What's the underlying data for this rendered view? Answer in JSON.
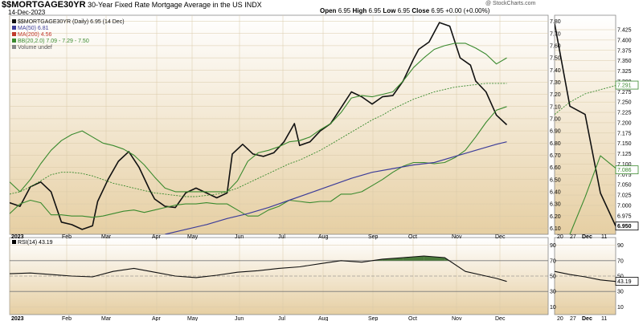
{
  "header": {
    "symbol": "$$MORTGAGE30YR",
    "description": "30-Year Fixed Rate Mortgage Average in the US",
    "exchange": "INDX",
    "date": "14-Dec-2023",
    "watermark": "@ StockCharts.com",
    "ohlc": {
      "open_label": "Open",
      "open": "6.95",
      "high_label": "High",
      "high": "6.95",
      "low_label": "Low",
      "low": "6.95",
      "close_label": "Close",
      "close": "6.95",
      "change": "+0.00 (+0.00%)"
    }
  },
  "legend": {
    "price": "$$MORTGAGE30YR (Daily) 6.95 (14 Dec)",
    "ma50": "MA(50) 6.81",
    "ma200": "MA(200) 4.56",
    "bb": "BB(20,2.0) 7.09 - 7.29 - 7.50",
    "volume": "Volume undef"
  },
  "colors": {
    "price": "#111111",
    "ma50": "#3d3d99",
    "ma200": "#c0392b",
    "bb": "#3a8a2e",
    "bg_top": "#ffffff",
    "bg_bottom": "#e6cfa3",
    "rsi_fill": "#4a7a3a"
  },
  "chart_data": [
    {
      "type": "line",
      "id": "main",
      "x_labels": [
        "2023",
        "Feb",
        "Mar",
        "Apr",
        "May",
        "Jun",
        "Jul",
        "Aug",
        "Sep",
        "Oct",
        "Nov",
        "Dec"
      ],
      "ylim": [
        6.05,
        7.85
      ],
      "y_ticks": [
        "6.10",
        "6.20",
        "6.30",
        "6.40",
        "6.50",
        "6.60",
        "6.70",
        "6.80",
        "6.90",
        "7.00",
        "7.10",
        "7.20",
        "7.30",
        "7.40",
        "7.50",
        "7.60",
        "7.70",
        "7.80"
      ],
      "series": [
        {
          "key": "price",
          "x": [
            0,
            2,
            4,
            6,
            8,
            10,
            12,
            14,
            16,
            17,
            19,
            21,
            23,
            25,
            27,
            28,
            30,
            32,
            34,
            36,
            38,
            40,
            42,
            43,
            45,
            47,
            49,
            51,
            53,
            55,
            56,
            58,
            60,
            62,
            64,
            66,
            68,
            70,
            72,
            74,
            76,
            78,
            79,
            81,
            83,
            85,
            87,
            89,
            90,
            92,
            94,
            96,
            98,
            100,
            102,
            104
          ],
          "y": [
            6.31,
            6.28,
            6.44,
            6.48,
            6.4,
            6.15,
            6.13,
            6.09,
            6.12,
            6.32,
            6.5,
            6.65,
            6.73,
            6.6,
            6.42,
            6.34,
            6.28,
            6.27,
            6.39,
            6.43,
            6.39,
            6.35,
            6.39,
            6.71,
            6.79,
            6.71,
            6.69,
            6.72,
            6.81,
            6.96,
            6.78,
            6.81,
            6.9,
            6.96,
            7.09,
            7.22,
            7.18,
            7.12,
            7.18,
            7.19,
            7.31,
            7.49,
            7.57,
            7.63,
            7.79,
            7.76,
            7.5,
            7.44,
            7.31,
            7.22,
            7.03,
            6.95,
            null,
            null,
            null,
            null
          ]
        },
        {
          "key": "bb_upper",
          "x": [
            0,
            2,
            4,
            6,
            8,
            10,
            12,
            14,
            16,
            18,
            20,
            22,
            24,
            26,
            28,
            30,
            32,
            34,
            36,
            38,
            40,
            42,
            44,
            46,
            48,
            50,
            52,
            54,
            56,
            58,
            60,
            62,
            64,
            66,
            68,
            70,
            72,
            74,
            76,
            78,
            80,
            82,
            84,
            86,
            88,
            90,
            92,
            94,
            96
          ],
          "y": [
            6.48,
            6.4,
            6.5,
            6.63,
            6.74,
            6.82,
            6.87,
            6.9,
            6.85,
            6.8,
            6.78,
            6.75,
            6.7,
            6.62,
            6.52,
            6.43,
            6.4,
            6.4,
            6.4,
            6.4,
            6.4,
            6.4,
            6.49,
            6.65,
            6.72,
            6.74,
            6.77,
            6.81,
            6.82,
            6.85,
            6.91,
            6.96,
            7.05,
            7.17,
            7.19,
            7.18,
            7.2,
            7.22,
            7.31,
            7.42,
            7.5,
            7.57,
            7.6,
            7.62,
            7.62,
            7.58,
            7.53,
            7.45,
            7.5
          ]
        },
        {
          "key": "bb_middle",
          "x": [
            0,
            2,
            4,
            6,
            8,
            10,
            12,
            14,
            16,
            18,
            20,
            22,
            24,
            26,
            28,
            30,
            32,
            34,
            36,
            38,
            40,
            42,
            44,
            46,
            48,
            50,
            52,
            54,
            56,
            58,
            60,
            62,
            64,
            66,
            68,
            70,
            72,
            74,
            76,
            78,
            80,
            82,
            84,
            86,
            88,
            90,
            92,
            94,
            96
          ],
          "y": [
            6.38,
            6.4,
            6.44,
            6.49,
            6.54,
            6.56,
            6.56,
            6.55,
            6.53,
            6.5,
            6.47,
            6.45,
            6.43,
            6.41,
            6.39,
            6.38,
            6.37,
            6.36,
            6.36,
            6.37,
            6.38,
            6.4,
            6.43,
            6.47,
            6.51,
            6.55,
            6.59,
            6.63,
            6.66,
            6.7,
            6.74,
            6.79,
            6.84,
            6.89,
            6.94,
            6.99,
            7.03,
            7.08,
            7.12,
            7.16,
            7.19,
            7.22,
            7.24,
            7.26,
            7.27,
            7.28,
            7.29,
            7.29,
            7.29
          ]
        },
        {
          "key": "bb_lower",
          "x": [
            0,
            2,
            4,
            6,
            8,
            10,
            12,
            14,
            16,
            18,
            20,
            22,
            24,
            26,
            28,
            30,
            32,
            34,
            36,
            38,
            40,
            42,
            44,
            46,
            48,
            50,
            52,
            54,
            56,
            58,
            60,
            62,
            64,
            66,
            68,
            70,
            72,
            74,
            76,
            78,
            80,
            82,
            84,
            86,
            88,
            90,
            92,
            94,
            96
          ],
          "y": [
            6.22,
            6.3,
            6.33,
            6.31,
            6.21,
            6.21,
            6.2,
            6.2,
            6.19,
            6.2,
            6.22,
            6.24,
            6.25,
            6.23,
            6.25,
            6.27,
            6.29,
            6.3,
            6.3,
            6.31,
            6.3,
            6.3,
            6.25,
            6.2,
            6.2,
            6.25,
            6.28,
            6.33,
            6.32,
            6.31,
            6.32,
            6.32,
            6.38,
            6.38,
            6.4,
            6.45,
            6.5,
            6.56,
            6.61,
            6.64,
            6.64,
            6.63,
            6.64,
            6.68,
            6.74,
            6.85,
            6.97,
            7.07,
            7.1
          ]
        },
        {
          "key": "ma50",
          "x": [
            30,
            34,
            38,
            42,
            46,
            50,
            54,
            58,
            62,
            66,
            70,
            74,
            78,
            82,
            86,
            90,
            94,
            96
          ],
          "y": [
            6.05,
            6.09,
            6.13,
            6.18,
            6.22,
            6.27,
            6.33,
            6.39,
            6.45,
            6.51,
            6.56,
            6.59,
            6.62,
            6.64,
            6.69,
            6.74,
            6.79,
            6.81
          ]
        }
      ]
    },
    {
      "type": "line",
      "id": "zoom",
      "x_labels": [
        "20",
        "27",
        "Dec",
        "11"
      ],
      "ylim": [
        6.93,
        7.46
      ],
      "y_ticks": [
        "6.975",
        "7.000",
        "7.025",
        "7.050",
        "7.075",
        "7.100",
        "7.125",
        "7.150",
        "7.175",
        "7.200",
        "7.225",
        "7.250",
        "7.275",
        "7.300",
        "7.325",
        "7.350",
        "7.375",
        "7.400",
        "7.425"
      ],
      "price_label": "6.950",
      "bb_upper_label": "7.291",
      "bb_lower_label": "7.086",
      "series": [
        {
          "key": "price",
          "x": [
            0,
            1,
            2,
            3,
            4
          ],
          "y": [
            7.44,
            7.24,
            7.22,
            7.03,
            6.95
          ]
        },
        {
          "key": "bb_middle",
          "x": [
            0,
            1,
            2,
            3,
            4
          ],
          "y": [
            7.22,
            7.25,
            7.27,
            7.28,
            7.29
          ]
        },
        {
          "key": "bb_lower",
          "x": [
            1,
            2,
            3,
            4
          ],
          "y": [
            6.93,
            7.02,
            7.12,
            7.09
          ]
        }
      ]
    },
    {
      "type": "line",
      "id": "rsi",
      "legend": "RSI(14) 43.19",
      "ylim": [
        0,
        100
      ],
      "y_ticks": [
        "10",
        "30",
        "50",
        "70",
        "90"
      ],
      "rsi_label": "43.19",
      "x": [
        0,
        4,
        8,
        12,
        16,
        20,
        24,
        28,
        32,
        36,
        40,
        44,
        48,
        52,
        56,
        60,
        64,
        68,
        72,
        76,
        80,
        84,
        88,
        92,
        94,
        96
      ],
      "values": [
        53,
        54,
        52,
        50,
        49,
        56,
        60,
        55,
        50,
        48,
        51,
        55,
        57,
        60,
        62,
        66,
        70,
        68,
        72,
        74,
        76,
        74,
        56,
        50,
        47,
        43
      ],
      "zoom_values": [
        56,
        52,
        49,
        45,
        43
      ]
    }
  ]
}
